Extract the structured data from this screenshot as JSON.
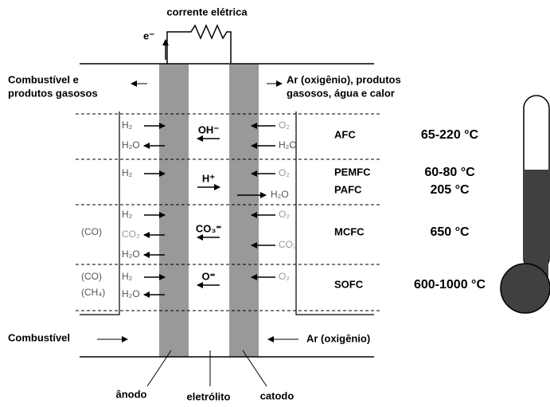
{
  "circuit": {
    "label": "corrente elétrica",
    "electron": "e⁻"
  },
  "top_left": [
    "Combustível e",
    "produtos gasosos"
  ],
  "top_right": [
    "Ar (oxigênio), produtos",
    "gasosos, água e calor"
  ],
  "rows": [
    {
      "labels": [
        "AFC"
      ],
      "temperatures": [
        "65-220 °C"
      ],
      "notes": [],
      "anode": [
        "H₂",
        "H₂O"
      ],
      "ion": "OH⁻",
      "cathode": [
        "O₂",
        "H₂O"
      ]
    },
    {
      "labels": [
        "PEMFC",
        "PAFC"
      ],
      "temperatures": [
        "60-80 °C",
        "205 °C"
      ],
      "notes": [],
      "anode": [
        "H₂"
      ],
      "ion": "H⁺",
      "cathode": [
        "O₂",
        "H₂O"
      ]
    },
    {
      "labels": [
        "MCFC"
      ],
      "temperatures": [
        "650 °C"
      ],
      "notes": [
        "(CO)"
      ],
      "anode": [
        "H₂",
        "CO₂",
        "H₂O"
      ],
      "ion": "CO₃⁼",
      "cathode": [
        "O₂",
        "CO₂"
      ]
    },
    {
      "labels": [
        "SOFC"
      ],
      "temperatures": [
        "600-1000 °C"
      ],
      "notes": [
        "(CO)",
        "(CH₄)"
      ],
      "anode": [
        "H₂",
        "H₂O"
      ],
      "ion": "O⁼",
      "cathode": [
        "O₂"
      ]
    }
  ],
  "bottom_left": "Combustível",
  "bottom_right": "Ar (oxigênio)",
  "parts": [
    "ânodo",
    "eletrólito",
    "catodo"
  ]
}
